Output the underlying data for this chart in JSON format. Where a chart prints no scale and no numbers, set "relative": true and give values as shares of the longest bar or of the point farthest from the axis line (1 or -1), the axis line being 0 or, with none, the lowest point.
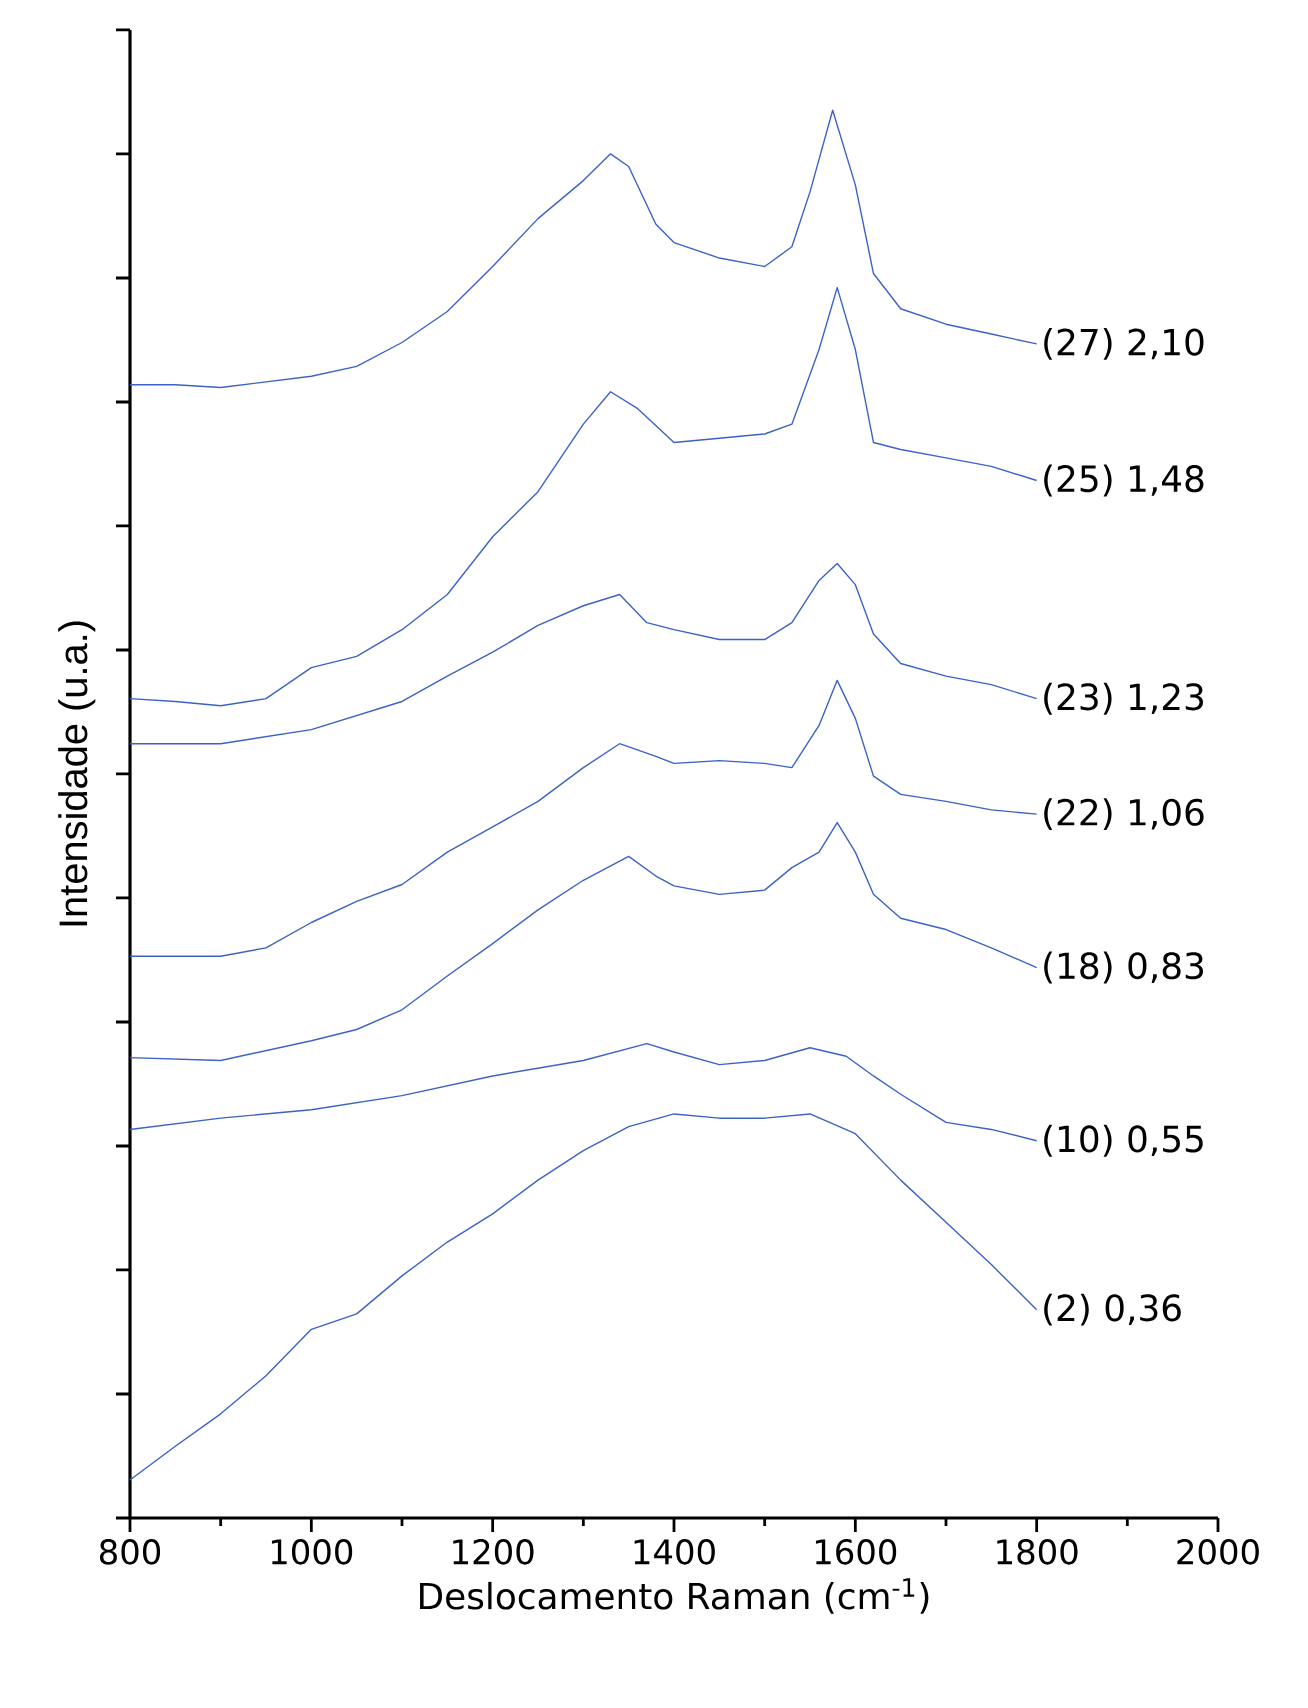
{
  "chart_data": {
    "type": "line",
    "relative": true,
    "xlabel": "Deslocamento Raman (cm$^{-1}$)",
    "ylabel": "Intensidade (u.a.)",
    "xlim": [
      800,
      2000
    ],
    "xticks": [
      800,
      1000,
      1200,
      1400,
      1600,
      1800,
      2000
    ],
    "grid": false,
    "legend": false,
    "marker": "none",
    "line_style": "solid",
    "series": [
      {
        "name": "(27) 2,10",
        "color": "#3a62c8",
        "x": [
          800,
          850,
          900,
          1000,
          1050,
          1100,
          1150,
          1200,
          1250,
          1300,
          1330,
          1350,
          1380,
          1400,
          1450,
          1500,
          1530,
          1550,
          1575,
          1600,
          1620,
          1650,
          1700,
          1750,
          1800
        ],
        "values": [
          0.805,
          0.805,
          0.803,
          0.811,
          0.818,
          0.835,
          0.857,
          0.889,
          0.923,
          0.95,
          0.969,
          0.96,
          0.919,
          0.906,
          0.895,
          0.889,
          0.903,
          0.942,
          1.0,
          0.947,
          0.884,
          0.859,
          0.848,
          0.841,
          0.834
        ]
      },
      {
        "name": "(25) 1,48",
        "color": "#3a62c8",
        "x": [
          800,
          850,
          900,
          950,
          1000,
          1050,
          1100,
          1150,
          1200,
          1250,
          1300,
          1330,
          1360,
          1400,
          1450,
          1500,
          1530,
          1560,
          1580,
          1600,
          1620,
          1650,
          1700,
          1750,
          1800
        ],
        "values": [
          0.582,
          0.58,
          0.577,
          0.582,
          0.604,
          0.612,
          0.631,
          0.656,
          0.697,
          0.729,
          0.777,
          0.8,
          0.788,
          0.764,
          0.767,
          0.77,
          0.777,
          0.83,
          0.874,
          0.83,
          0.764,
          0.759,
          0.753,
          0.747,
          0.737
        ]
      },
      {
        "name": "(23) 1,23",
        "color": "#3a62c8",
        "x": [
          800,
          900,
          1000,
          1100,
          1150,
          1200,
          1250,
          1300,
          1340,
          1370,
          1400,
          1450,
          1500,
          1530,
          1560,
          1580,
          1600,
          1620,
          1650,
          1700,
          1750,
          1800
        ],
        "values": [
          0.55,
          0.55,
          0.56,
          0.58,
          0.598,
          0.615,
          0.634,
          0.648,
          0.656,
          0.636,
          0.631,
          0.624,
          0.624,
          0.636,
          0.666,
          0.678,
          0.663,
          0.628,
          0.607,
          0.598,
          0.592,
          0.582
        ]
      },
      {
        "name": "(22) 1,06",
        "color": "#3a62c8",
        "x": [
          800,
          900,
          950,
          1000,
          1050,
          1100,
          1150,
          1200,
          1250,
          1300,
          1340,
          1380,
          1400,
          1450,
          1500,
          1530,
          1560,
          1580,
          1600,
          1620,
          1650,
          1700,
          1750,
          1800
        ],
        "values": [
          0.399,
          0.399,
          0.405,
          0.423,
          0.438,
          0.45,
          0.473,
          0.491,
          0.509,
          0.533,
          0.55,
          0.541,
          0.536,
          0.538,
          0.536,
          0.533,
          0.563,
          0.595,
          0.568,
          0.527,
          0.514,
          0.509,
          0.503,
          0.5
        ]
      },
      {
        "name": "(18) 0,83",
        "color": "#3a62c8",
        "x": [
          800,
          900,
          1000,
          1050,
          1100,
          1150,
          1200,
          1250,
          1300,
          1350,
          1380,
          1400,
          1450,
          1500,
          1530,
          1560,
          1580,
          1600,
          1620,
          1650,
          1700,
          1750,
          1800
        ],
        "values": [
          0.327,
          0.325,
          0.339,
          0.347,
          0.361,
          0.385,
          0.408,
          0.432,
          0.453,
          0.47,
          0.456,
          0.449,
          0.443,
          0.446,
          0.462,
          0.473,
          0.494,
          0.473,
          0.443,
          0.426,
          0.418,
          0.405,
          0.391
        ]
      },
      {
        "name": "(10) 0,55",
        "color": "#3a62c8",
        "x": [
          800,
          900,
          1000,
          1100,
          1200,
          1300,
          1370,
          1400,
          1450,
          1500,
          1550,
          1590,
          1620,
          1650,
          1700,
          1750,
          1800
        ],
        "values": [
          0.276,
          0.284,
          0.29,
          0.3,
          0.314,
          0.325,
          0.337,
          0.331,
          0.322,
          0.325,
          0.334,
          0.328,
          0.314,
          0.301,
          0.281,
          0.276,
          0.268
        ]
      },
      {
        "name": "(2) 0,36",
        "color": "#3a62c8",
        "x": [
          800,
          850,
          900,
          950,
          1000,
          1050,
          1100,
          1150,
          1200,
          1250,
          1300,
          1350,
          1400,
          1450,
          1500,
          1550,
          1600,
          1650,
          1700,
          1750,
          1800
        ],
        "values": [
          0.027,
          0.051,
          0.074,
          0.101,
          0.134,
          0.145,
          0.172,
          0.196,
          0.216,
          0.24,
          0.261,
          0.278,
          0.287,
          0.284,
          0.284,
          0.287,
          0.273,
          0.24,
          0.21,
          0.18,
          0.148
        ]
      }
    ]
  }
}
